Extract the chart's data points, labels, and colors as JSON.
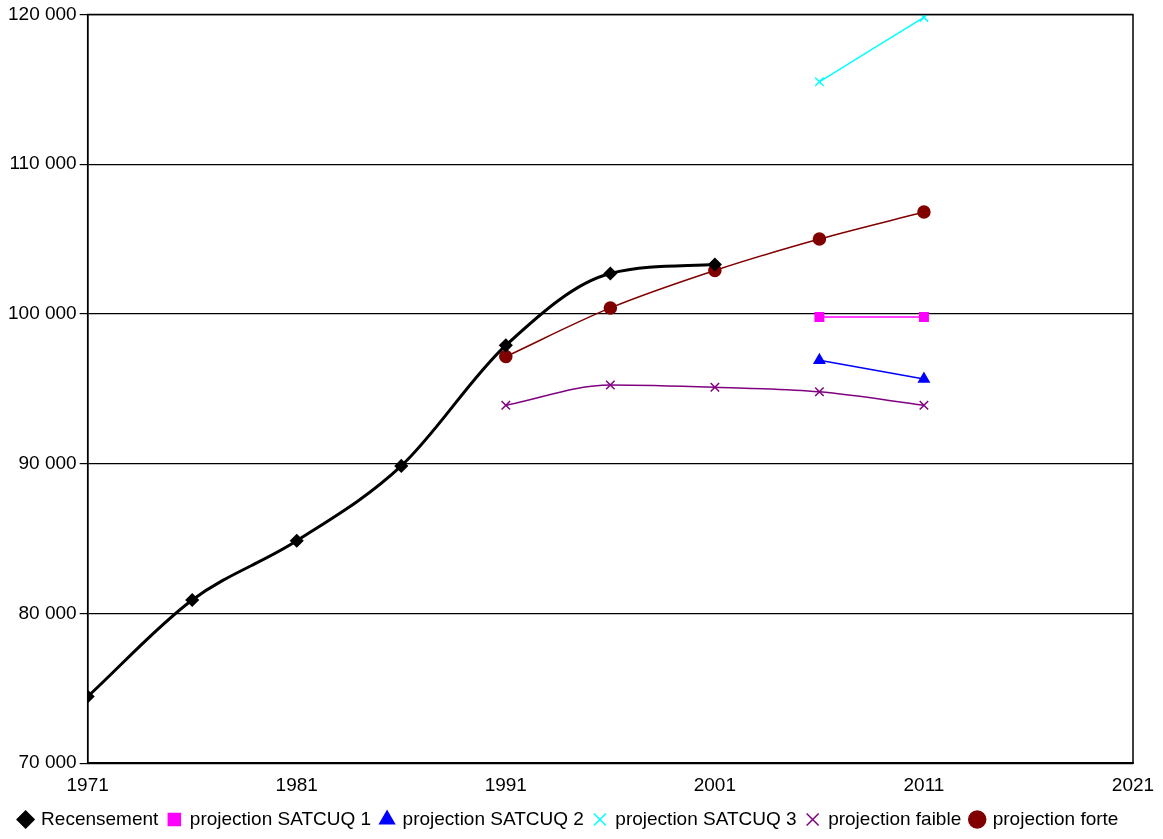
{
  "chart_data": {
    "type": "line",
    "xlim": [
      1971,
      2021
    ],
    "xticks": [
      1971,
      1981,
      1991,
      2001,
      2011,
      2021
    ],
    "ylim": [
      70000,
      120000
    ],
    "yticks": [
      {
        "value": 70000,
        "label": "70 000"
      },
      {
        "value": 80000,
        "label": "80 000"
      },
      {
        "value": 90000,
        "label": "90 000"
      },
      {
        "value": 100000,
        "label": "100 000"
      },
      {
        "value": 110000,
        "label": "110 000"
      },
      {
        "value": 120000,
        "label": "120 000"
      }
    ],
    "grid": "y",
    "legend": "bottom",
    "series": [
      {
        "name": "Recensement",
        "color": "#000000",
        "marker": "diamond",
        "x": [
          1971,
          1976,
          1981,
          1986,
          1991,
          1996,
          2001
        ],
        "values": [
          74450,
          80900,
          84850,
          89850,
          97900,
          102700,
          103300
        ]
      },
      {
        "name": "projection SATCUQ 1",
        "color": "#ff00ff",
        "marker": "square",
        "x": [
          2006,
          2011
        ],
        "values": [
          99800,
          99800
        ]
      },
      {
        "name": "projection SATCUQ 2",
        "color": "#0000ff",
        "marker": "triangle",
        "x": [
          2006,
          2011
        ],
        "values": [
          96900,
          95650
        ]
      },
      {
        "name": "projection SATCUQ 3",
        "color": "#00ffff",
        "marker": "cross",
        "x": [
          2006,
          2011
        ],
        "values": [
          115500,
          119800
        ]
      },
      {
        "name": "projection faible",
        "color": "#800080",
        "marker": "cross",
        "x": [
          1991,
          1996,
          2001,
          2006,
          2011
        ],
        "values": [
          93900,
          95250,
          95100,
          94800,
          93900
        ]
      },
      {
        "name": "projection forte",
        "color": "#800000",
        "marker": "circle",
        "x": [
          1991,
          1996,
          2001,
          2006,
          2011
        ],
        "values": [
          97150,
          100400,
          102900,
          105000,
          106800
        ]
      }
    ]
  }
}
